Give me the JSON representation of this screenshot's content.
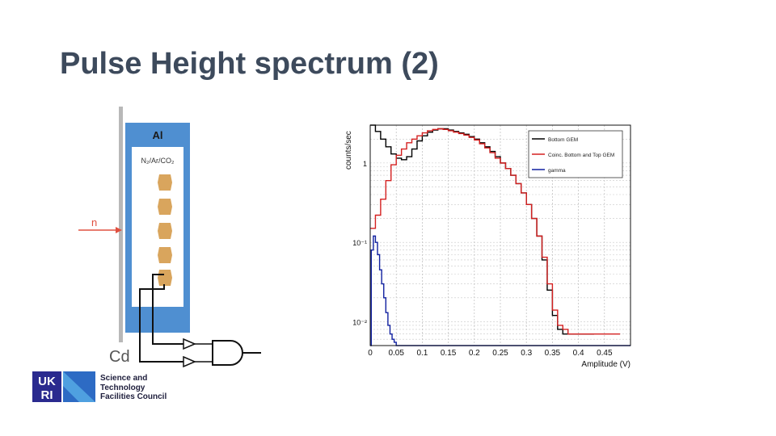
{
  "slide": {
    "title": "Pulse Height spectrum (2)"
  },
  "diagram": {
    "al_label": "Al",
    "gas_label": "N₂/Ar/CO₂",
    "neutron_label": "n",
    "cd_label": "Cd",
    "colors": {
      "al": "#4f8fd1",
      "gas": "#ffffff",
      "gem": "#d9a55d",
      "cd": "#b8b8b8",
      "arrow": "#e05040"
    }
  },
  "logo": {
    "mark": "UKRI",
    "line1": "Science and",
    "line2": "Technology",
    "line3": "Facilities Council",
    "color": "#2a2a8f"
  },
  "chart_data": {
    "type": "line",
    "xlabel": "Amplitude (V)",
    "ylabel": "counts/sec",
    "xlim": [
      0,
      0.5
    ],
    "ylim": [
      0.005,
      3
    ],
    "yscale": "log",
    "grid": true,
    "legend_position": "top-right",
    "xticks": [
      "0",
      "0.05",
      "0.1",
      "0.15",
      "0.2",
      "0.25",
      "0.3",
      "0.35",
      "0.4",
      "0.45"
    ],
    "yticks": [
      "10⁻²",
      "10⁻¹",
      "1"
    ],
    "series": [
      {
        "name": "Bottom GEM",
        "color": "#000000",
        "x": [
          0.005,
          0.015,
          0.025,
          0.035,
          0.045,
          0.055,
          0.065,
          0.075,
          0.085,
          0.095,
          0.105,
          0.115,
          0.125,
          0.135,
          0.145,
          0.155,
          0.165,
          0.175,
          0.185,
          0.195,
          0.205,
          0.215,
          0.225,
          0.235,
          0.245,
          0.255,
          0.265,
          0.275,
          0.285,
          0.295,
          0.305,
          0.315,
          0.325,
          0.335,
          0.345,
          0.355,
          0.365,
          0.375,
          0.385,
          0.395,
          0.405,
          0.415,
          0.425
        ],
        "y": [
          3,
          2.5,
          2,
          1.6,
          1.3,
          1.15,
          1.1,
          1.2,
          1.5,
          1.9,
          2.2,
          2.45,
          2.6,
          2.7,
          2.7,
          2.6,
          2.5,
          2.4,
          2.3,
          2.15,
          2.0,
          1.8,
          1.6,
          1.4,
          1.2,
          1.0,
          0.85,
          0.7,
          0.55,
          0.42,
          0.3,
          0.2,
          0.12,
          0.06,
          0.025,
          0.012,
          0.008,
          0.007,
          0.007,
          0.007,
          0.007,
          0.007,
          0.007
        ]
      },
      {
        "name": "Coinc. Bottom and Top GEM",
        "color": "#d42020",
        "x": [
          0.005,
          0.015,
          0.025,
          0.035,
          0.045,
          0.055,
          0.065,
          0.075,
          0.085,
          0.095,
          0.105,
          0.115,
          0.125,
          0.135,
          0.145,
          0.155,
          0.165,
          0.175,
          0.185,
          0.195,
          0.205,
          0.215,
          0.225,
          0.235,
          0.245,
          0.255,
          0.265,
          0.275,
          0.285,
          0.295,
          0.305,
          0.315,
          0.325,
          0.335,
          0.345,
          0.355,
          0.365,
          0.375,
          0.385,
          0.395,
          0.405,
          0.415,
          0.425,
          0.435,
          0.445,
          0.455,
          0.465,
          0.475
        ],
        "y": [
          0.15,
          0.22,
          0.35,
          0.6,
          0.95,
          1.25,
          1.5,
          1.8,
          2.0,
          2.2,
          2.4,
          2.55,
          2.65,
          2.7,
          2.65,
          2.55,
          2.45,
          2.35,
          2.25,
          2.1,
          1.95,
          1.75,
          1.55,
          1.35,
          1.15,
          1.0,
          0.85,
          0.7,
          0.55,
          0.42,
          0.3,
          0.2,
          0.12,
          0.065,
          0.03,
          0.014,
          0.009,
          0.008,
          0.007,
          0.007,
          0.007,
          0.007,
          0.007,
          0.007,
          0.007,
          0.007,
          0.007,
          0.007
        ]
      },
      {
        "name": "gamma",
        "color": "#1020a0",
        "x": [
          0.0,
          0.004,
          0.008,
          0.012,
          0.016,
          0.02,
          0.024,
          0.028,
          0.032,
          0.036,
          0.04,
          0.044,
          0.048,
          0.052,
          0.056,
          0.06,
          0.1,
          0.2,
          0.3,
          0.4,
          0.5
        ],
        "y": [
          0.005,
          0.08,
          0.12,
          0.1,
          0.07,
          0.045,
          0.03,
          0.02,
          0.013,
          0.009,
          0.007,
          0.006,
          0.0055,
          0.005,
          0.005,
          0.005,
          0.005,
          0.005,
          0.005,
          0.005,
          0.005
        ]
      }
    ]
  }
}
